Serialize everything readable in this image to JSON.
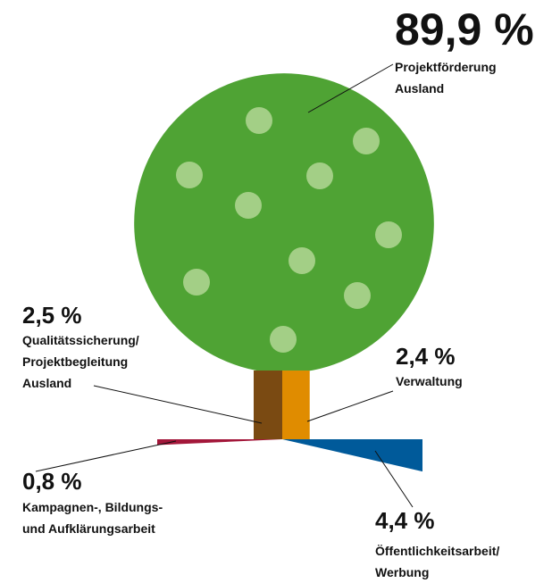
{
  "chart_data": {
    "type": "tree",
    "categories": [
      [
        "Projektförderung",
        "Ausland"
      ],
      [
        "Qualitätssicherung/",
        "Projektbegleitung",
        "Ausland"
      ],
      [
        "Verwaltung"
      ],
      [
        "Kampagnen-, Bildungs-",
        "und Aufklärungsarbeit"
      ],
      [
        "Öffentlichkeitsarbeit/",
        "Werbung"
      ]
    ],
    "values": [
      89.9,
      2.5,
      2.4,
      0.8,
      4.4
    ],
    "value_labels": [
      "89,9 %",
      "2,5 %",
      "2,4 %",
      "0,8 %",
      "4,4 %"
    ],
    "colors": [
      "#4fa334",
      "#7a4a12",
      "#e08c00",
      "#a3173a",
      "#005a9a"
    ]
  }
}
